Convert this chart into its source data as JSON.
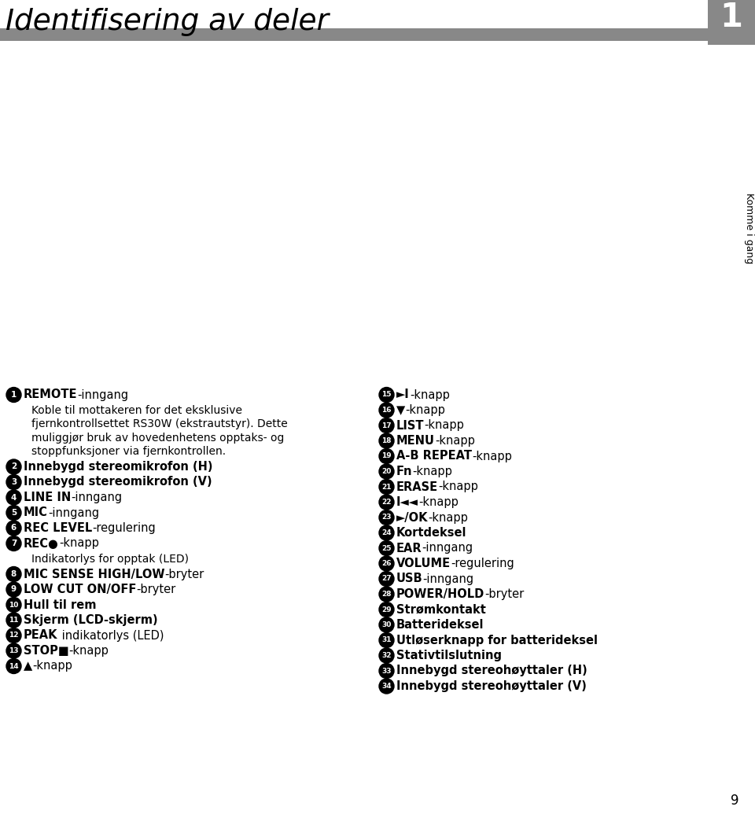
{
  "title": "Identifisering av deler",
  "bar_color": "#888888",
  "bg_color": "#ffffff",
  "chapter_number": "1",
  "chapter_label": "Komme i gang",
  "page_number": "9",
  "left_column": [
    {
      "num": "1",
      "bold": "REMOTE",
      "normal": "-inngang",
      "sub": [
        "Koble til mottakeren for det eksklusive",
        "fjernkontrollsettet RS30W (ekstrautstyr). Dette",
        "muliggjør bruk av hovedenhetens opptaks- og",
        "stoppfunksjoner via fjernkontrollen."
      ]
    },
    {
      "num": "2",
      "bold": "Innebygd stereomikrofon (H)",
      "normal": "",
      "sub": []
    },
    {
      "num": "3",
      "bold": "Innebygd stereomikrofon (V)",
      "normal": "",
      "sub": []
    },
    {
      "num": "4",
      "bold": "LINE IN",
      "normal": "-inngang",
      "sub": []
    },
    {
      "num": "5",
      "bold": "MIC",
      "normal": "-inngang",
      "sub": []
    },
    {
      "num": "6",
      "bold": "REC LEVEL",
      "normal": "-regulering",
      "sub": []
    },
    {
      "num": "7",
      "bold": "REC●",
      "normal": "-knapp",
      "sub": [
        "Indikatorlys for opptak (LED)"
      ]
    },
    {
      "num": "8",
      "bold": "MIC SENSE HIGH/LOW",
      "normal": "-bryter",
      "sub": []
    },
    {
      "num": "9",
      "bold": "LOW CUT ON/OFF",
      "normal": "-bryter",
      "sub": []
    },
    {
      "num": "10",
      "bold": "Hull til rem",
      "normal": "",
      "sub": []
    },
    {
      "num": "11",
      "bold": "Skjerm (LCD-skjerm)",
      "normal": "",
      "sub": []
    },
    {
      "num": "12",
      "bold": "PEAK",
      "normal": " indikatorlys (LED)",
      "sub": []
    },
    {
      "num": "13",
      "bold": "STOP■",
      "normal": "-knapp",
      "sub": []
    },
    {
      "num": "14",
      "bold": "▲",
      "normal": "-knapp",
      "sub": []
    }
  ],
  "right_column": [
    {
      "num": "15",
      "bold": "►I",
      "normal": "-knapp"
    },
    {
      "num": "16",
      "bold": "▼",
      "normal": "-knapp"
    },
    {
      "num": "17",
      "bold": "LIST",
      "normal": "-knapp"
    },
    {
      "num": "18",
      "bold": "MENU",
      "normal": "-knapp"
    },
    {
      "num": "19",
      "bold": "A-B REPEAT",
      "normal": "-knapp"
    },
    {
      "num": "20",
      "bold": "Fn",
      "normal": "-knapp"
    },
    {
      "num": "21",
      "bold": "ERASE",
      "normal": "-knapp"
    },
    {
      "num": "22",
      "bold": "I◄◄",
      "normal": "-knapp"
    },
    {
      "num": "23",
      "bold": "►/OK",
      "normal": "-knapp"
    },
    {
      "num": "24",
      "bold": "Kortdeksel",
      "normal": ""
    },
    {
      "num": "25",
      "bold": "EAR",
      "normal": "-inngang"
    },
    {
      "num": "26",
      "bold": "VOLUME",
      "normal": "-regulering"
    },
    {
      "num": "27",
      "bold": "USB",
      "normal": "-inngang"
    },
    {
      "num": "28",
      "bold": "POWER/HOLD",
      "normal": "-bryter"
    },
    {
      "num": "29",
      "bold": "Strømkontakt",
      "normal": ""
    },
    {
      "num": "30",
      "bold": "Batterideksel",
      "normal": ""
    },
    {
      "num": "31",
      "bold": "Utløserknapp for batterideksel",
      "normal": ""
    },
    {
      "num": "32",
      "bold": "Stativtilslutning",
      "normal": ""
    },
    {
      "num": "33",
      "bold": "Innebygd stereohøyttaler (H)",
      "normal": ""
    },
    {
      "num": "34",
      "bold": "Innebygd stereohøyttaler (V)",
      "normal": ""
    }
  ]
}
